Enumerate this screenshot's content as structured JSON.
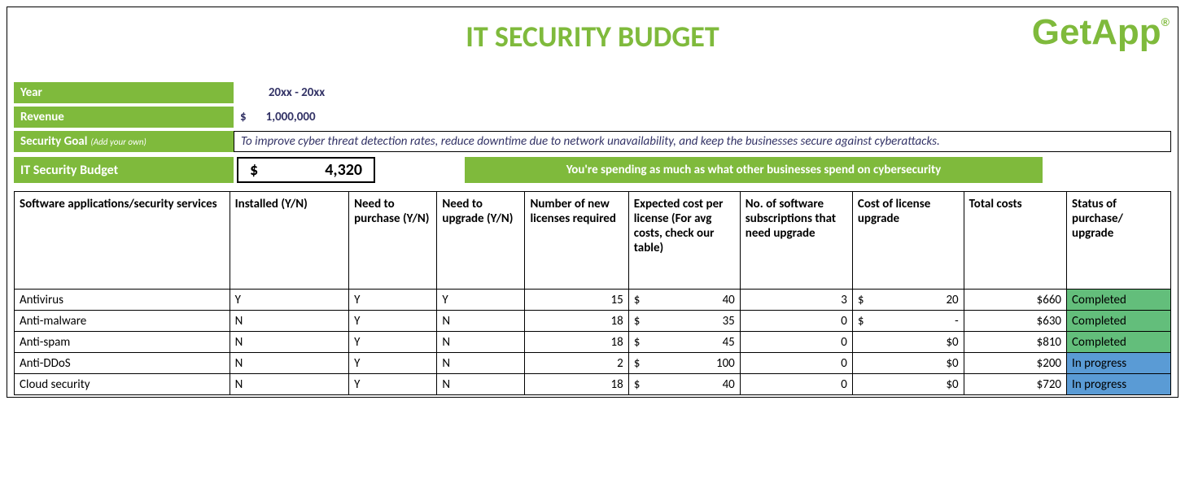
{
  "title": "IT SECURITY BUDGET",
  "logo": {
    "text": "GetApp",
    "reg": "®"
  },
  "colors": {
    "accent": "#7fba3c",
    "completed_bg": "#63be7b",
    "inprogress_bg": "#5a9bd5",
    "text_dark": "#333366"
  },
  "info": {
    "year_label": "Year",
    "year_value": "20xx - 20xx",
    "revenue_label": "Revenue",
    "revenue_symbol": "$",
    "revenue_value": "1,000,000",
    "goal_label": "Security Goal",
    "goal_hint": "(Add your own)",
    "goal_value": "To improve cyber threat detection rates, reduce downtime due to network unavailability, and keep the businesses secure against cyberattacks.",
    "budget_label": "IT Security Budget",
    "budget_symbol": "$",
    "budget_value": "4,320",
    "budget_msg": "You're spending as much as what other businesses spend on cybersecurity"
  },
  "table": {
    "headers": [
      "Software applications/security services",
      "Installed (Y/N)",
      "Need to purchase (Y/N)",
      "Need to upgrade (Y/N)",
      "Number of new licenses required",
      "Expected cost per license (For avg costs, check our table)",
      "No. of software subscriptions that need upgrade",
      "Cost of license upgrade",
      "Total costs",
      "Status of purchase/ upgrade"
    ],
    "rows": [
      {
        "name": "Antivirus",
        "installed": "Y",
        "need_purchase": "Y",
        "need_upgrade": "Y",
        "licenses": "15",
        "cost_sym": "$",
        "cost_per": "40",
        "subs": "3",
        "upg_sym": "$",
        "upg_cost": "20",
        "total": "$660",
        "status": "Completed",
        "status_class": "status-completed"
      },
      {
        "name": "Anti-malware",
        "installed": "N",
        "need_purchase": "Y",
        "need_upgrade": "N",
        "licenses": "18",
        "cost_sym": "$",
        "cost_per": "35",
        "subs": "0",
        "upg_sym": "$",
        "upg_cost": "-",
        "total": "$630",
        "status": "Completed",
        "status_class": "status-completed"
      },
      {
        "name": "Anti-spam",
        "installed": "N",
        "need_purchase": "Y",
        "need_upgrade": "N",
        "licenses": "18",
        "cost_sym": "$",
        "cost_per": "45",
        "subs": "0",
        "upg_sym": "",
        "upg_cost": "$0",
        "total": "$810",
        "status": "Completed",
        "status_class": "status-completed"
      },
      {
        "name": "Anti-DDoS",
        "installed": "N",
        "need_purchase": "Y",
        "need_upgrade": "N",
        "licenses": "2",
        "cost_sym": "$",
        "cost_per": "100",
        "subs": "0",
        "upg_sym": "",
        "upg_cost": "$0",
        "total": "$200",
        "status": "In progress",
        "status_class": "status-inprogress"
      },
      {
        "name": "Cloud security",
        "installed": "N",
        "need_purchase": "Y",
        "need_upgrade": "N",
        "licenses": "18",
        "cost_sym": "$",
        "cost_per": "40",
        "subs": "0",
        "upg_sym": "",
        "upg_cost": "$0",
        "total": "$720",
        "status": "In progress",
        "status_class": "status-inprogress"
      }
    ]
  }
}
